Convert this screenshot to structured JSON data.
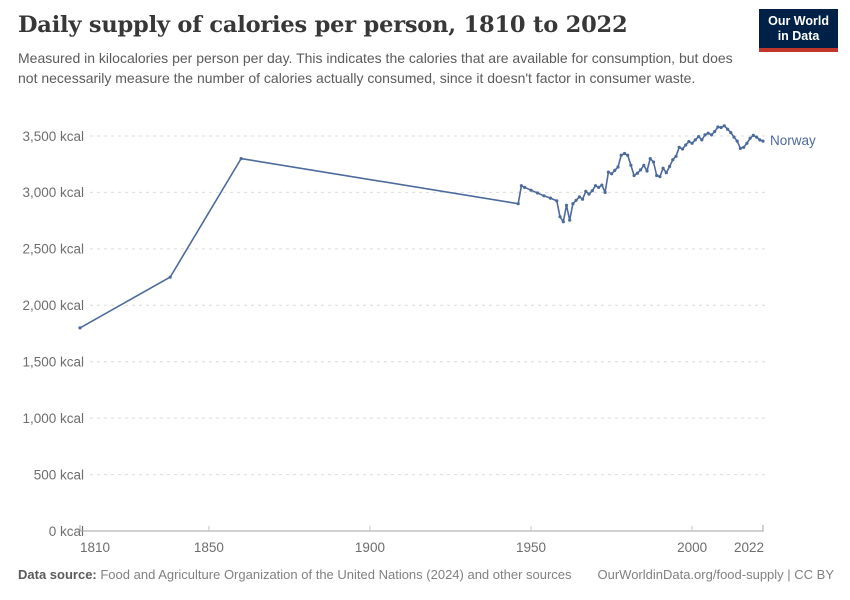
{
  "header": {
    "title": "Daily supply of calories per person, 1810 to 2022",
    "subtitle": "Measured in kilocalories per person per day. This indicates the calories that are available for consumption, but does not necessarily measure the number of calories actually consumed, since it doesn't factor in consumer waste.",
    "logo_line1": "Our World",
    "logo_line2": "in Data"
  },
  "chart_data": {
    "type": "line",
    "title": "Daily supply of calories per person, 1810 to 2022",
    "unit": "kcal",
    "xlabel": "",
    "ylabel": "",
    "xlim": [
      1810,
      2022
    ],
    "ylim": [
      0,
      3500
    ],
    "grid": "horizontal-dashed",
    "legend_position": "end-of-line",
    "line_color": "#4c6a9c",
    "xticks": [
      1810,
      1850,
      1900,
      1950,
      2000,
      2022
    ],
    "xtick_labels": [
      "1810",
      "1850",
      "1900",
      "1950",
      "2000",
      "2022"
    ],
    "yticks": [
      0,
      500,
      1000,
      1500,
      2000,
      2500,
      3000,
      3500
    ],
    "ytick_labels": [
      "0 kcal",
      "500 kcal",
      "1,000 kcal",
      "1,500 kcal",
      "2,000 kcal",
      "2,500 kcal",
      "3,000 kcal",
      "3,500 kcal"
    ],
    "series": [
      {
        "name": "Norway",
        "points": [
          [
            1810,
            1800
          ],
          [
            1838,
            2250
          ],
          [
            1860,
            3300
          ],
          [
            1946,
            2900
          ],
          [
            1947,
            3060
          ],
          [
            1948,
            3045
          ],
          [
            1950,
            3020
          ],
          [
            1952,
            2995
          ],
          [
            1954,
            2970
          ],
          [
            1956,
            2950
          ],
          [
            1958,
            2925
          ],
          [
            1959,
            2785
          ],
          [
            1960,
            2740
          ],
          [
            1961,
            2885
          ],
          [
            1962,
            2755
          ],
          [
            1963,
            2900
          ],
          [
            1964,
            2930
          ],
          [
            1965,
            2960
          ],
          [
            1966,
            2940
          ],
          [
            1967,
            3010
          ],
          [
            1968,
            2985
          ],
          [
            1969,
            3015
          ],
          [
            1970,
            3060
          ],
          [
            1971,
            3045
          ],
          [
            1972,
            3065
          ],
          [
            1973,
            3000
          ],
          [
            1974,
            3180
          ],
          [
            1975,
            3165
          ],
          [
            1976,
            3195
          ],
          [
            1977,
            3225
          ],
          [
            1978,
            3330
          ],
          [
            1979,
            3345
          ],
          [
            1980,
            3330
          ],
          [
            1981,
            3240
          ],
          [
            1982,
            3150
          ],
          [
            1983,
            3170
          ],
          [
            1984,
            3200
          ],
          [
            1985,
            3240
          ],
          [
            1986,
            3190
          ],
          [
            1987,
            3300
          ],
          [
            1988,
            3270
          ],
          [
            1989,
            3150
          ],
          [
            1990,
            3140
          ],
          [
            1991,
            3215
          ],
          [
            1992,
            3175
          ],
          [
            1993,
            3230
          ],
          [
            1994,
            3290
          ],
          [
            1995,
            3320
          ],
          [
            1996,
            3400
          ],
          [
            1997,
            3385
          ],
          [
            1998,
            3420
          ],
          [
            1999,
            3450
          ],
          [
            2000,
            3435
          ],
          [
            2001,
            3465
          ],
          [
            2002,
            3495
          ],
          [
            2003,
            3465
          ],
          [
            2004,
            3510
          ],
          [
            2005,
            3525
          ],
          [
            2006,
            3510
          ],
          [
            2007,
            3540
          ],
          [
            2008,
            3580
          ],
          [
            2009,
            3575
          ],
          [
            2010,
            3590
          ],
          [
            2011,
            3560
          ],
          [
            2012,
            3530
          ],
          [
            2013,
            3490
          ],
          [
            2014,
            3455
          ],
          [
            2015,
            3390
          ],
          [
            2016,
            3400
          ],
          [
            2017,
            3435
          ],
          [
            2018,
            3480
          ],
          [
            2019,
            3505
          ],
          [
            2020,
            3490
          ],
          [
            2021,
            3465
          ],
          [
            2022,
            3455
          ]
        ]
      }
    ]
  },
  "footer": {
    "source_label": "Data source:",
    "source_text": " Food and Agriculture Organization of the United Nations (2024) and other sources",
    "link_text": "OurWorldinData.org/food-supply | CC BY"
  }
}
